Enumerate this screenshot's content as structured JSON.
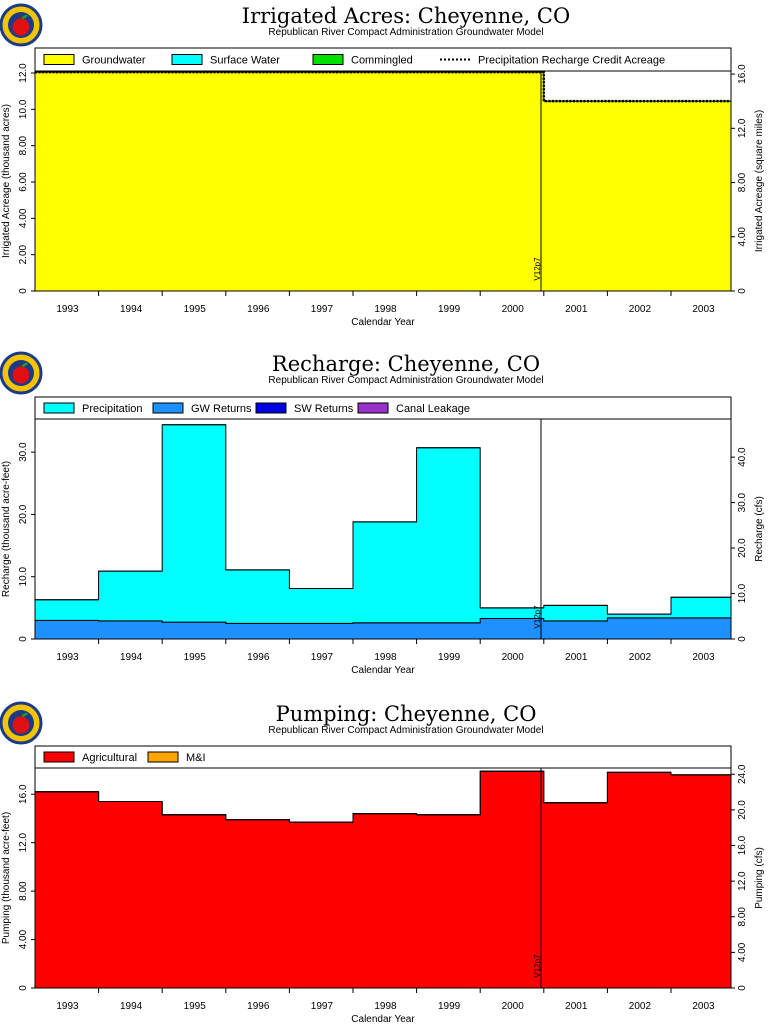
{
  "chart_data": [
    {
      "type": "area",
      "title": "Irrigated Acres: Cheyenne, CO",
      "subtitle": "Republican River Compact Administration Groundwater Model",
      "xlabel": "Calendar Year",
      "ylabel": "Irrigated Acreage (thousand acres)",
      "y2label": "Irrigated Acreage (square miles)",
      "categories": [
        "1993",
        "1994",
        "1995",
        "1996",
        "1997",
        "1998",
        "1999",
        "2000",
        "2001",
        "2002",
        "2003"
      ],
      "ylim": [
        0,
        12.0
      ],
      "yticks": [
        "0",
        "2.00",
        "4.00",
        "6.00",
        "8.00",
        "10.0",
        "12.0"
      ],
      "y2ticks": [
        "0",
        "4.00",
        "8.00",
        "12.0",
        "16.0"
      ],
      "legend": [
        {
          "name": "Groundwater",
          "color": "#ffff00"
        },
        {
          "name": "Surface Water",
          "color": "#00ffff"
        },
        {
          "name": "Commingled",
          "color": "#00e000"
        },
        {
          "name": "Precipitation Recharge Credit Acreage",
          "color": "#000000",
          "dashed": true
        }
      ],
      "series": [
        {
          "name": "Groundwater",
          "values": [
            12.05,
            12.05,
            12.05,
            12.05,
            12.05,
            12.05,
            12.05,
            12.05,
            10.45,
            10.45,
            10.45
          ]
        },
        {
          "name": "Precipitation Recharge Credit Acreage",
          "values": [
            12.05,
            12.05,
            12.05,
            12.05,
            12.05,
            12.05,
            12.05,
            12.05,
            10.45,
            10.45,
            10.45
          ]
        }
      ],
      "marker": "V12p7"
    },
    {
      "type": "area",
      "title": "Recharge: Cheyenne, CO",
      "subtitle": "Republican River Compact Administration Groundwater Model",
      "xlabel": "Calendar Year",
      "ylabel": "Recharge (thousand acre-feet)",
      "y2label": "Recharge (cfs)",
      "categories": [
        "1993",
        "1994",
        "1995",
        "1996",
        "1997",
        "1998",
        "1999",
        "2000",
        "2001",
        "2002",
        "2003"
      ],
      "ylim": [
        0,
        35
      ],
      "yticks": [
        "0",
        "10.0",
        "20.0",
        "30.0"
      ],
      "y2ticks": [
        "0",
        "10.0",
        "20.0",
        "30.0",
        "40.0"
      ],
      "legend": [
        {
          "name": "Precipitation",
          "color": "#00ffff"
        },
        {
          "name": "GW Returns",
          "color": "#1e90ff"
        },
        {
          "name": "SW Returns",
          "color": "#0000e0"
        },
        {
          "name": "Canal Leakage",
          "color": "#9932cc"
        }
      ],
      "series": [
        {
          "name": "GW Returns",
          "values": [
            3.0,
            2.9,
            2.7,
            2.5,
            2.5,
            2.6,
            2.6,
            3.3,
            2.9,
            3.4,
            3.4
          ]
        },
        {
          "name": "Precipitation",
          "values": [
            3.3,
            8.0,
            31.7,
            8.6,
            5.6,
            16.2,
            28.1,
            1.7,
            2.5,
            0.6,
            3.3
          ]
        }
      ],
      "marker": "V12p7"
    },
    {
      "type": "area",
      "title": "Pumping: Cheyenne, CO",
      "subtitle": "Republican River Compact Administration Groundwater Model",
      "xlabel": "Calendar Year",
      "ylabel": "Pumping (thousand acre-feet)",
      "y2label": "Pumping (cfs)",
      "categories": [
        "1993",
        "1994",
        "1995",
        "1996",
        "1997",
        "1998",
        "1999",
        "2000",
        "2001",
        "2002",
        "2003"
      ],
      "ylim": [
        0,
        18
      ],
      "yticks": [
        "0",
        "4.00",
        "8.00",
        "12.0",
        "16.0"
      ],
      "y2ticks": [
        "0",
        "4.00",
        "8.00",
        "12.0",
        "16.0",
        "20.0",
        "24.0"
      ],
      "legend": [
        {
          "name": "Agricultural",
          "color": "#ff0000"
        },
        {
          "name": "M&I",
          "color": "#ffa500"
        }
      ],
      "series": [
        {
          "name": "Agricultural",
          "values": [
            16.2,
            15.4,
            14.3,
            13.9,
            13.7,
            14.4,
            14.3,
            17.9,
            15.3,
            17.8,
            17.6
          ]
        },
        {
          "name": "M&I",
          "values": [
            0,
            0,
            0,
            0,
            0,
            0,
            0,
            0,
            0,
            0,
            0
          ]
        }
      ],
      "marker": "V12p7"
    }
  ]
}
